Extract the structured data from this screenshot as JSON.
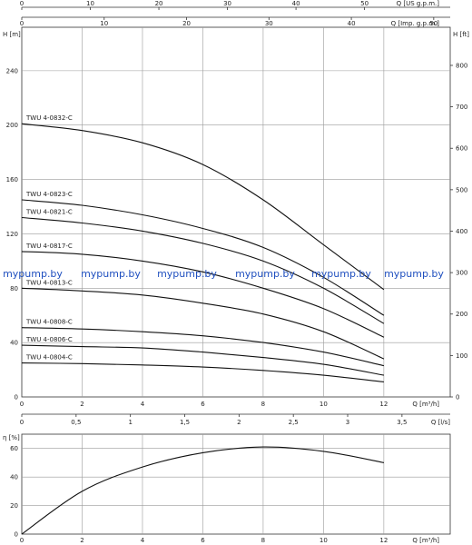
{
  "chart_data": [
    {
      "type": "line",
      "name": "pump-head-curves",
      "x_axis_main": {
        "label": "Q [m³/h]",
        "range": [
          0,
          14.2
        ],
        "ticks": [
          0,
          2,
          4,
          6,
          8,
          10,
          12
        ]
      },
      "x_axis_top1": {
        "label": "Q [US g.p.m.]",
        "range": [
          0,
          62.5
        ],
        "ticks": [
          0,
          10,
          20,
          30,
          40,
          50
        ]
      },
      "x_axis_top2": {
        "label": "Q [Imp. g.p.m.]",
        "range": [
          0,
          52
        ],
        "ticks": [
          0,
          10,
          20,
          30,
          40,
          50
        ]
      },
      "y_axis_left": {
        "label": "H [m]",
        "range": [
          0,
          272
        ],
        "ticks": [
          0,
          40,
          80,
          120,
          160,
          200,
          240
        ]
      },
      "y_axis_right": {
        "label": "H [ft]",
        "range": [
          0,
          892
        ],
        "ticks": [
          0,
          100,
          200,
          300,
          400,
          500,
          600,
          700,
          800
        ]
      },
      "grid": true,
      "series": [
        {
          "name": "TWU 4-0832-C",
          "x": [
            0,
            2,
            4,
            6,
            8,
            10,
            12
          ],
          "y": [
            201,
            196,
            187,
            171,
            145,
            112,
            79
          ]
        },
        {
          "name": "TWU 4-0823-C",
          "x": [
            0,
            2,
            4,
            6,
            8,
            10,
            12
          ],
          "y": [
            145,
            141,
            134,
            124,
            110,
            88,
            60
          ]
        },
        {
          "name": "TWU 4-0821-C",
          "x": [
            0,
            2,
            4,
            6,
            8,
            10,
            12
          ],
          "y": [
            132,
            128,
            122,
            113,
            100,
            80,
            54
          ]
        },
        {
          "name": "TWU 4-0817-C",
          "x": [
            0,
            2,
            4,
            6,
            8,
            10,
            12
          ],
          "y": [
            107,
            105,
            100,
            92,
            80,
            65,
            44
          ]
        },
        {
          "name": "TWU 4-0813-C",
          "x": [
            0,
            2,
            4,
            6,
            8,
            10,
            12
          ],
          "y": [
            80,
            78,
            75,
            69,
            61,
            48,
            28
          ]
        },
        {
          "name": "TWU 4-0808-C",
          "x": [
            0,
            2,
            4,
            6,
            8,
            10,
            12
          ],
          "y": [
            51,
            50,
            48,
            45,
            40,
            33,
            23
          ]
        },
        {
          "name": "TWU 4-0806-C",
          "x": [
            0,
            2,
            4,
            6,
            8,
            10,
            12
          ],
          "y": [
            38,
            37,
            36,
            33,
            29,
            24,
            16
          ]
        },
        {
          "name": "TWU 4-0804-C",
          "x": [
            0,
            2,
            4,
            6,
            8,
            10,
            12
          ],
          "y": [
            25,
            24.5,
            23.5,
            22,
            19.5,
            16,
            11
          ]
        }
      ]
    },
    {
      "type": "line",
      "name": "pump-efficiency-curve",
      "x_axis_main": {
        "label": "Q [m³/h]",
        "range": [
          0,
          14.2
        ],
        "ticks": [
          0,
          2,
          4,
          6,
          8,
          10,
          12
        ]
      },
      "x_axis_top": {
        "label": "Q [l/s]",
        "range": [
          0,
          3.944
        ],
        "ticks": [
          0,
          0.5,
          1,
          1.5,
          2,
          2.5,
          3,
          3.5
        ],
        "tick_labels": [
          "0",
          "0,5",
          "1",
          "1,5",
          "2",
          "2,5",
          "3",
          "3,5"
        ]
      },
      "y_axis_left": {
        "label": "η [%]",
        "range": [
          0,
          70
        ],
        "ticks": [
          0,
          20,
          40,
          60
        ]
      },
      "grid": true,
      "series": [
        {
          "name": "",
          "x": [
            0,
            2,
            4,
            6,
            8,
            10,
            12
          ],
          "y": [
            0,
            30,
            47,
            57,
            61,
            58,
            50
          ]
        }
      ]
    }
  ],
  "watermark": {
    "text": "mypump.by",
    "count": 6
  }
}
